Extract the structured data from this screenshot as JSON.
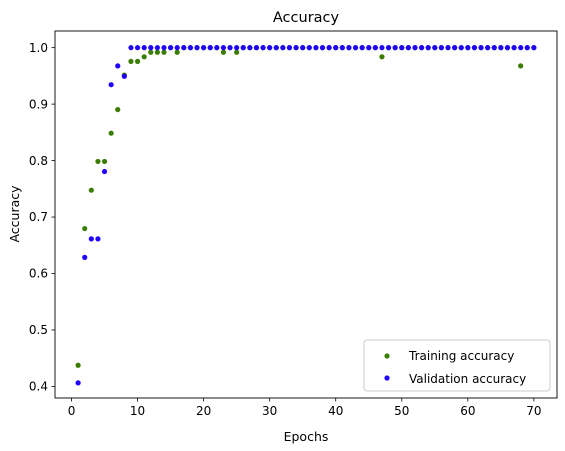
{
  "chart_data": {
    "type": "scatter",
    "title": "Accuracy",
    "xlabel": "Epochs",
    "ylabel": "Accuracy",
    "xlim": [
      -2.5,
      73.5
    ],
    "ylim": [
      0.3795,
      1.0295
    ],
    "xticks": [
      0,
      10,
      20,
      30,
      40,
      50,
      60,
      70
    ],
    "yticks": [
      0.4,
      0.5,
      0.6,
      0.7,
      0.8,
      0.9,
      1.0
    ],
    "grid": false,
    "legend_position": "lower-right",
    "series": [
      {
        "name": "Training accuracy",
        "color": "#3a7d00",
        "x": [
          1,
          2,
          3,
          4,
          5,
          6,
          7,
          8,
          9,
          10,
          11,
          12,
          13,
          14,
          15,
          16,
          17,
          18,
          19,
          20,
          21,
          22,
          23,
          24,
          25,
          26,
          27,
          28,
          29,
          30,
          31,
          32,
          33,
          34,
          35,
          36,
          37,
          38,
          39,
          40,
          41,
          42,
          43,
          44,
          45,
          46,
          47,
          48,
          49,
          50,
          51,
          52,
          53,
          54,
          55,
          56,
          57,
          58,
          59,
          60,
          61,
          62,
          63,
          64,
          65,
          66,
          67,
          68,
          69,
          70
        ],
        "y": [
          0.4375,
          0.6796,
          0.7476,
          0.7985,
          0.7985,
          0.8485,
          0.8903,
          0.9515,
          0.9757,
          0.9757,
          0.9838,
          0.9919,
          0.9919,
          0.9919,
          1.0,
          0.9919,
          1.0,
          1.0,
          1.0,
          1.0,
          1.0,
          1.0,
          0.9919,
          1.0,
          0.9919,
          1.0,
          1.0,
          1.0,
          1.0,
          1.0,
          1.0,
          1.0,
          1.0,
          1.0,
          1.0,
          1.0,
          1.0,
          1.0,
          1.0,
          1.0,
          1.0,
          1.0,
          1.0,
          1.0,
          1.0,
          1.0,
          0.9838,
          1.0,
          1.0,
          1.0,
          1.0,
          1.0,
          1.0,
          1.0,
          1.0,
          1.0,
          1.0,
          1.0,
          1.0,
          1.0,
          1.0,
          1.0,
          1.0,
          1.0,
          1.0,
          1.0,
          1.0,
          0.9677,
          1.0,
          1.0
        ]
      },
      {
        "name": "Validation accuracy",
        "color": "#2200ff",
        "x": [
          1,
          2,
          3,
          4,
          5,
          6,
          7,
          8,
          9,
          10,
          11,
          12,
          13,
          14,
          15,
          16,
          17,
          18,
          19,
          20,
          21,
          22,
          23,
          24,
          25,
          26,
          27,
          28,
          29,
          30,
          31,
          32,
          33,
          34,
          35,
          36,
          37,
          38,
          39,
          40,
          41,
          42,
          43,
          44,
          45,
          46,
          47,
          48,
          49,
          50,
          51,
          52,
          53,
          54,
          55,
          56,
          57,
          58,
          59,
          60,
          61,
          62,
          63,
          64,
          65,
          66,
          67,
          68,
          69,
          70
        ],
        "y": [
          0.4063,
          0.6286,
          0.6613,
          0.6613,
          0.7806,
          0.9344,
          0.9677,
          0.9493,
          1.0,
          1.0,
          1.0,
          1.0,
          1.0,
          1.0,
          1.0,
          1.0,
          1.0,
          1.0,
          1.0,
          1.0,
          1.0,
          1.0,
          1.0,
          1.0,
          1.0,
          1.0,
          1.0,
          1.0,
          1.0,
          1.0,
          1.0,
          1.0,
          1.0,
          1.0,
          1.0,
          1.0,
          1.0,
          1.0,
          1.0,
          1.0,
          1.0,
          1.0,
          1.0,
          1.0,
          1.0,
          1.0,
          1.0,
          1.0,
          1.0,
          1.0,
          1.0,
          1.0,
          1.0,
          1.0,
          1.0,
          1.0,
          1.0,
          1.0,
          1.0,
          1.0,
          1.0,
          1.0,
          1.0,
          1.0,
          1.0,
          1.0,
          1.0,
          1.0,
          1.0,
          1.0
        ]
      }
    ]
  }
}
